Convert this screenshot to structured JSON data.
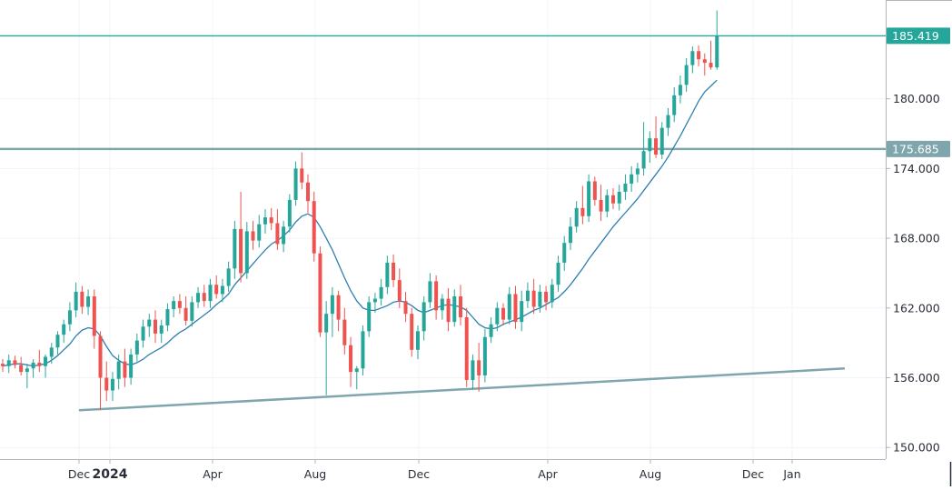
{
  "chart_data": {
    "type": "candlestick",
    "title": "",
    "xlabel": "",
    "ylabel": "",
    "ylim": [
      149,
      188.5
    ],
    "y_ticks": [
      "150.000",
      "156.000",
      "162.000",
      "168.000",
      "174.000",
      "180.000"
    ],
    "x_ticks": [
      {
        "label": "Dec",
        "year": false
      },
      {
        "label": "2024",
        "year": true
      },
      {
        "label": "Apr",
        "year": false
      },
      {
        "label": "Aug",
        "year": false
      },
      {
        "label": "Dec",
        "year": false
      },
      {
        "label": "Apr",
        "year": false
      },
      {
        "label": "Aug",
        "year": false
      },
      {
        "label": "Dec",
        "year": false
      },
      {
        "label": "Jan",
        "year": false
      }
    ],
    "horizontal_levels": [
      {
        "value": 185.419,
        "label": "185.419",
        "color": "#26a69a"
      },
      {
        "value": 175.685,
        "label": "175.685",
        "color": "#7fa6ad"
      }
    ],
    "trendline": {
      "from": 153.2,
      "to": 156.8,
      "color": "#7fa6ad"
    },
    "colors": {
      "up": "#26a69a",
      "down": "#ef5350",
      "ma": "#2e7fb0"
    },
    "grid": true,
    "candles": [
      [
        157.2,
        157.6,
        156.5,
        157.0
      ],
      [
        157.0,
        158.0,
        156.4,
        157.5
      ],
      [
        157.5,
        157.9,
        156.8,
        157.1
      ],
      [
        157.1,
        157.8,
        156.2,
        156.5
      ],
      [
        156.5,
        157.2,
        155.1,
        156.8
      ],
      [
        156.8,
        157.6,
        156.0,
        157.3
      ],
      [
        157.3,
        158.4,
        156.5,
        157.0
      ],
      [
        157.0,
        158.0,
        156.0,
        157.8
      ],
      [
        157.8,
        159.0,
        157.2,
        158.6
      ],
      [
        158.6,
        160.0,
        158.0,
        159.7
      ],
      [
        159.7,
        161.0,
        159.0,
        160.6
      ],
      [
        160.6,
        162.5,
        160.0,
        161.8
      ],
      [
        161.8,
        164.2,
        161.2,
        163.4
      ],
      [
        163.4,
        163.9,
        161.5,
        162.1
      ],
      [
        162.1,
        163.6,
        161.4,
        163.0
      ],
      [
        163.0,
        163.6,
        158.5,
        159.6
      ],
      [
        159.6,
        160.0,
        153.2,
        156.0
      ],
      [
        156.0,
        157.4,
        154.0,
        154.9
      ],
      [
        154.9,
        156.5,
        154.0,
        155.9
      ],
      [
        155.9,
        158.0,
        155.0,
        157.4
      ],
      [
        157.4,
        158.5,
        155.2,
        156.0
      ],
      [
        156.0,
        158.5,
        155.4,
        158.0
      ],
      [
        158.0,
        159.8,
        157.4,
        159.2
      ],
      [
        159.2,
        161.0,
        158.6,
        160.4
      ],
      [
        160.4,
        161.5,
        159.5,
        161.0
      ],
      [
        161.0,
        161.8,
        159.0,
        159.8
      ],
      [
        159.8,
        161.0,
        159.0,
        160.5
      ],
      [
        160.5,
        162.4,
        160.0,
        161.9
      ],
      [
        161.9,
        163.0,
        161.2,
        162.6
      ],
      [
        162.6,
        163.2,
        161.5,
        162.0
      ],
      [
        162.0,
        163.0,
        160.5,
        160.9
      ],
      [
        160.9,
        163.0,
        160.4,
        162.5
      ],
      [
        162.5,
        163.8,
        162.0,
        163.3
      ],
      [
        163.3,
        164.0,
        162.1,
        162.6
      ],
      [
        162.6,
        164.5,
        162.0,
        164.0
      ],
      [
        164.0,
        164.8,
        162.8,
        163.2
      ],
      [
        163.2,
        164.5,
        162.5,
        163.9
      ],
      [
        163.9,
        166.0,
        163.4,
        165.4
      ],
      [
        165.4,
        169.5,
        164.5,
        168.8
      ],
      [
        168.8,
        172.0,
        164.2,
        165.0
      ],
      [
        165.0,
        169.4,
        164.5,
        168.6
      ],
      [
        168.6,
        169.5,
        167.0,
        167.8
      ],
      [
        167.8,
        170.0,
        167.2,
        169.2
      ],
      [
        169.2,
        170.5,
        168.4,
        169.8
      ],
      [
        169.8,
        170.6,
        168.7,
        169.3
      ],
      [
        169.3,
        170.5,
        167.0,
        167.5
      ],
      [
        167.5,
        169.5,
        166.8,
        169.0
      ],
      [
        169.0,
        171.8,
        168.5,
        171.3
      ],
      [
        171.3,
        174.6,
        170.8,
        174.0
      ],
      [
        174.0,
        175.4,
        172.2,
        172.8
      ],
      [
        172.8,
        173.5,
        170.2,
        171.2
      ],
      [
        171.2,
        172.0,
        166.0,
        166.7
      ],
      [
        166.7,
        167.3,
        159.5,
        159.9
      ],
      [
        159.9,
        162.6,
        154.5,
        161.5
      ],
      [
        161.5,
        163.8,
        159.5,
        163.1
      ],
      [
        163.1,
        163.5,
        160.0,
        161.0
      ],
      [
        161.0,
        162.0,
        158.0,
        158.8
      ],
      [
        158.8,
        159.5,
        155.2,
        156.5
      ],
      [
        156.5,
        157.0,
        155.0,
        156.8
      ],
      [
        156.8,
        160.5,
        156.2,
        160.0
      ],
      [
        160.0,
        163.0,
        159.5,
        162.5
      ],
      [
        162.5,
        163.3,
        161.6,
        162.8
      ],
      [
        162.8,
        164.5,
        162.2,
        163.8
      ],
      [
        163.8,
        166.5,
        163.2,
        165.9
      ],
      [
        165.9,
        166.6,
        163.8,
        164.4
      ],
      [
        164.4,
        165.4,
        162.0,
        162.6
      ],
      [
        162.6,
        163.4,
        160.8,
        161.5
      ],
      [
        161.5,
        162.0,
        157.8,
        158.4
      ],
      [
        158.4,
        160.5,
        157.6,
        160.0
      ],
      [
        160.0,
        163.0,
        159.2,
        162.5
      ],
      [
        162.5,
        165.0,
        162.0,
        164.3
      ],
      [
        164.3,
        164.8,
        161.0,
        161.8
      ],
      [
        161.8,
        163.2,
        161.0,
        162.8
      ],
      [
        162.8,
        163.7,
        160.0,
        160.8
      ],
      [
        160.8,
        163.6,
        160.4,
        163.0
      ],
      [
        163.0,
        164.0,
        160.5,
        161.2
      ],
      [
        161.2,
        162.0,
        155.2,
        155.8
      ],
      [
        155.8,
        158.0,
        155.0,
        157.5
      ],
      [
        157.5,
        159.0,
        154.8,
        156.2
      ],
      [
        156.2,
        160.2,
        155.6,
        159.5
      ],
      [
        159.5,
        161.2,
        159.0,
        160.6
      ],
      [
        160.6,
        162.5,
        160.0,
        162.0
      ],
      [
        162.0,
        162.4,
        160.5,
        161.0
      ],
      [
        161.0,
        163.8,
        160.6,
        163.2
      ],
      [
        163.2,
        163.9,
        160.2,
        160.8
      ],
      [
        160.8,
        163.5,
        160.0,
        162.6
      ],
      [
        162.6,
        164.2,
        162.0,
        163.5
      ],
      [
        163.5,
        164.5,
        161.5,
        162.1
      ],
      [
        162.1,
        164.0,
        161.6,
        163.4
      ],
      [
        163.4,
        163.9,
        161.8,
        162.5
      ],
      [
        162.5,
        164.5,
        162.0,
        164.0
      ],
      [
        164.0,
        166.5,
        163.4,
        165.9
      ],
      [
        165.9,
        168.2,
        165.2,
        167.6
      ],
      [
        167.6,
        169.8,
        167.0,
        169.0
      ],
      [
        169.0,
        171.2,
        168.5,
        170.6
      ],
      [
        170.6,
        172.5,
        169.2,
        169.9
      ],
      [
        169.9,
        173.5,
        169.4,
        172.9
      ],
      [
        172.9,
        173.3,
        170.8,
        171.3
      ],
      [
        171.3,
        172.6,
        169.5,
        170.3
      ],
      [
        170.3,
        172.2,
        169.8,
        171.7
      ],
      [
        171.7,
        172.3,
        170.5,
        171.0
      ],
      [
        171.0,
        172.6,
        170.4,
        172.0
      ],
      [
        172.0,
        173.5,
        171.3,
        172.7
      ],
      [
        172.7,
        174.2,
        172.0,
        173.5
      ],
      [
        173.5,
        174.5,
        172.8,
        174.0
      ],
      [
        174.0,
        178.0,
        173.4,
        175.5
      ],
      [
        175.5,
        177.2,
        174.5,
        176.6
      ],
      [
        176.6,
        178.5,
        174.9,
        175.2
      ],
      [
        175.2,
        178.0,
        174.8,
        177.5
      ],
      [
        177.5,
        179.2,
        176.8,
        178.6
      ],
      [
        178.6,
        181.0,
        178.0,
        180.3
      ],
      [
        180.3,
        182.0,
        179.6,
        181.2
      ],
      [
        181.2,
        183.5,
        180.6,
        182.9
      ],
      [
        182.9,
        184.5,
        182.2,
        184.1
      ],
      [
        184.1,
        184.6,
        182.8,
        183.4
      ],
      [
        183.4,
        183.9,
        182.0,
        183.1
      ],
      [
        183.1,
        185.0,
        182.5,
        182.7
      ],
      [
        182.7,
        187.6,
        182.5,
        185.4
      ]
    ],
    "moving_average": [
      157.0,
      157.1,
      157.2,
      157.2,
      157.1,
      157.0,
      157.1,
      157.2,
      157.5,
      157.9,
      158.4,
      158.9,
      159.6,
      160.1,
      160.3,
      160.2,
      159.6,
      158.7,
      157.9,
      157.5,
      157.2,
      157.1,
      157.3,
      157.6,
      158.0,
      158.3,
      158.6,
      159.0,
      159.5,
      159.9,
      160.2,
      160.6,
      161.0,
      161.4,
      161.8,
      162.3,
      162.7,
      163.2,
      164.0,
      164.6,
      165.2,
      165.8,
      166.4,
      167.0,
      167.5,
      167.8,
      168.2,
      168.7,
      169.4,
      169.9,
      170.1,
      169.8,
      169.0,
      168.0,
      167.0,
      165.8,
      164.6,
      163.5,
      162.6,
      162.0,
      161.8,
      161.8,
      162.0,
      162.2,
      162.5,
      162.6,
      162.5,
      162.2,
      161.8,
      161.6,
      161.8,
      162.0,
      162.2,
      162.3,
      162.2,
      162.1,
      161.8,
      161.2,
      160.6,
      160.3,
      160.2,
      160.3,
      160.6,
      160.8,
      161.0,
      161.2,
      161.5,
      161.8,
      162.0,
      162.3,
      162.6,
      162.9,
      163.4,
      164.0,
      164.7,
      165.4,
      166.2,
      166.9,
      167.6,
      168.3,
      169.0,
      169.6,
      170.2,
      170.8,
      171.4,
      172.1,
      172.8,
      173.5,
      174.2,
      175.0,
      175.9,
      176.8,
      177.8,
      178.8,
      179.8,
      180.6,
      181.1,
      181.6
    ]
  }
}
